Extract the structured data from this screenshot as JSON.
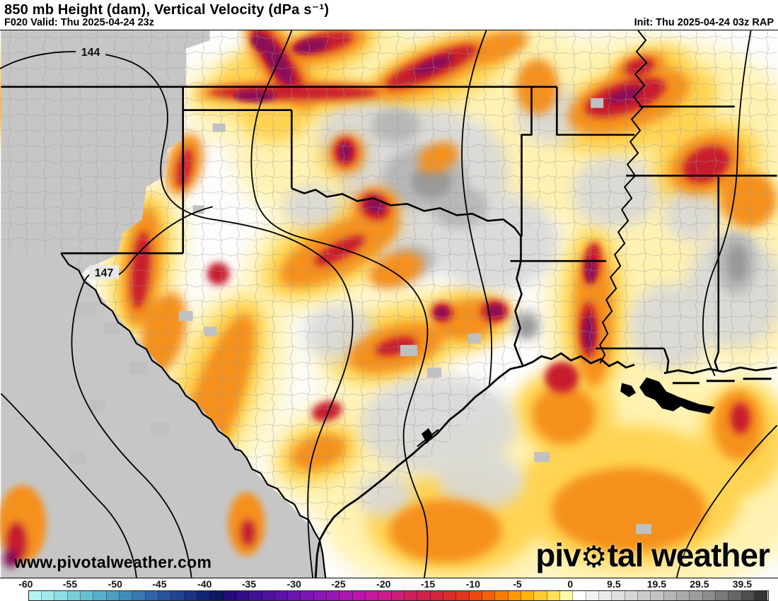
{
  "header": {
    "title": "850 mb Height (dam), Vertical Velocity (dPa s⁻¹)",
    "forecast": "F020 Valid: Thu 2025-04-24 23z",
    "init": "Init: Thu 2025-04-24 03z RAP"
  },
  "map": {
    "watermark": "www.pivotalweather.com",
    "contour_labels": [
      {
        "text": "144"
      },
      {
        "text": "147"
      }
    ]
  },
  "logo": {
    "part1": "piv",
    "gear_icon": "⚙",
    "part2": "tal weather"
  },
  "colorbar": {
    "ticks": [
      {
        "label": "-60",
        "pos": 3.3
      },
      {
        "label": "-55",
        "pos": 9.0
      },
      {
        "label": "-50",
        "pos": 14.8
      },
      {
        "label": "-45",
        "pos": 20.5
      },
      {
        "label": "-40",
        "pos": 26.3
      },
      {
        "label": "-35",
        "pos": 32.0
      },
      {
        "label": "-30",
        "pos": 37.8
      },
      {
        "label": "-25",
        "pos": 43.5
      },
      {
        "label": "-20",
        "pos": 49.3
      },
      {
        "label": "-15",
        "pos": 55.0
      },
      {
        "label": "-10",
        "pos": 60.8
      },
      {
        "label": "-5",
        "pos": 66.5
      },
      {
        "label": "0",
        "pos": 73.3
      },
      {
        "label": "9.5",
        "pos": 78.9
      },
      {
        "label": "19.5",
        "pos": 84.4
      },
      {
        "label": "29.5",
        "pos": 89.9
      },
      {
        "label": "39.5",
        "pos": 95.4
      }
    ],
    "colors": [
      "#b6f2f0",
      "#a2e8ea",
      "#8edce4",
      "#7aceda",
      "#66c0d2",
      "#56b0ca",
      "#4a9ec2",
      "#408cb8",
      "#3878b0",
      "#3064a6",
      "#28529c",
      "#224292",
      "#1a3284",
      "#122474",
      "#0c1860",
      "#240c78",
      "#320e88",
      "#401096",
      "#4e12a0",
      "#5c14a8",
      "#6a16b0",
      "#7a16b4",
      "#8a16b6",
      "#9a16b4",
      "#aa16b0",
      "#b816a8",
      "#c41aa0",
      "#cc1c8c",
      "#cc1e74",
      "#cc205e",
      "#ce224a",
      "#d22638",
      "#d82c2a",
      "#e2361c",
      "#ec4810",
      "#f46008",
      "#f87c04",
      "#fc9a00",
      "#ffb40a",
      "#ffcc2e",
      "#ffe054",
      "#fff9a6",
      "#ffffff",
      "#f3f3f3",
      "#eaeaea",
      "#e0e0e0",
      "#d6d6d6",
      "#cccccc",
      "#c2c2c2",
      "#b6b6b6",
      "#aaaaaa",
      "#9c9c9c",
      "#8c8c8c",
      "#7a7a7a",
      "#666666",
      "#4e4e4e",
      "#343434"
    ]
  }
}
